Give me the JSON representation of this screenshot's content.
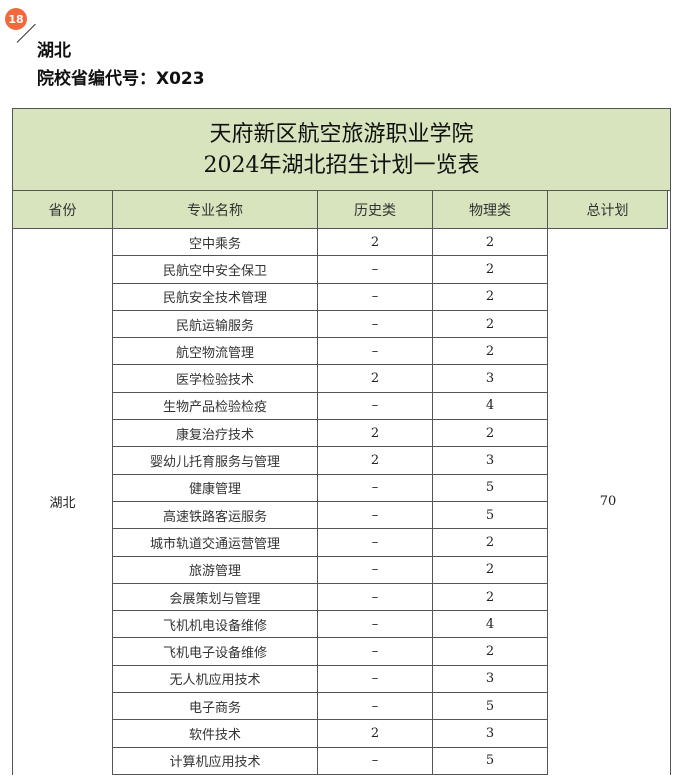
{
  "badge": "18",
  "province_heading": "湖北",
  "school_code": "院校省编代号：X023",
  "table": {
    "title_line1": "天府新区航空旅游职业学院",
    "title_line2": "2024年湖北招生计划一览表",
    "headers": [
      "省份",
      "专业名称",
      "历史类",
      "物理类",
      "总计划"
    ],
    "province": "湖北",
    "total": "70",
    "rows": [
      {
        "major": "空中乘务",
        "history": "2",
        "physics": "2"
      },
      {
        "major": "民航空中安全保卫",
        "history": "–",
        "physics": "2"
      },
      {
        "major": "民航安全技术管理",
        "history": "–",
        "physics": "2"
      },
      {
        "major": "民航运输服务",
        "history": "–",
        "physics": "2"
      },
      {
        "major": "航空物流管理",
        "history": "–",
        "physics": "2"
      },
      {
        "major": "医学检验技术",
        "history": "2",
        "physics": "3"
      },
      {
        "major": "生物产品检验检疫",
        "history": "–",
        "physics": "4"
      },
      {
        "major": "康复治疗技术",
        "history": "2",
        "physics": "2"
      },
      {
        "major": "婴幼儿托育服务与管理",
        "history": "2",
        "physics": "3"
      },
      {
        "major": "健康管理",
        "history": "–",
        "physics": "5"
      },
      {
        "major": "高速铁路客运服务",
        "history": "–",
        "physics": "5"
      },
      {
        "major": "城市轨道交通运营管理",
        "history": "–",
        "physics": "2"
      },
      {
        "major": "旅游管理",
        "history": "–",
        "physics": "2"
      },
      {
        "major": "会展策划与管理",
        "history": "–",
        "physics": "2"
      },
      {
        "major": "飞机机电设备维修",
        "history": "–",
        "physics": "4"
      },
      {
        "major": "飞机电子设备维修",
        "history": "–",
        "physics": "2"
      },
      {
        "major": "无人机应用技术",
        "history": "–",
        "physics": "3"
      },
      {
        "major": "电子商务",
        "history": "–",
        "physics": "5"
      },
      {
        "major": "软件技术",
        "history": "2",
        "physics": "3"
      },
      {
        "major": "计算机应用技术",
        "history": "–",
        "physics": "5"
      }
    ]
  }
}
